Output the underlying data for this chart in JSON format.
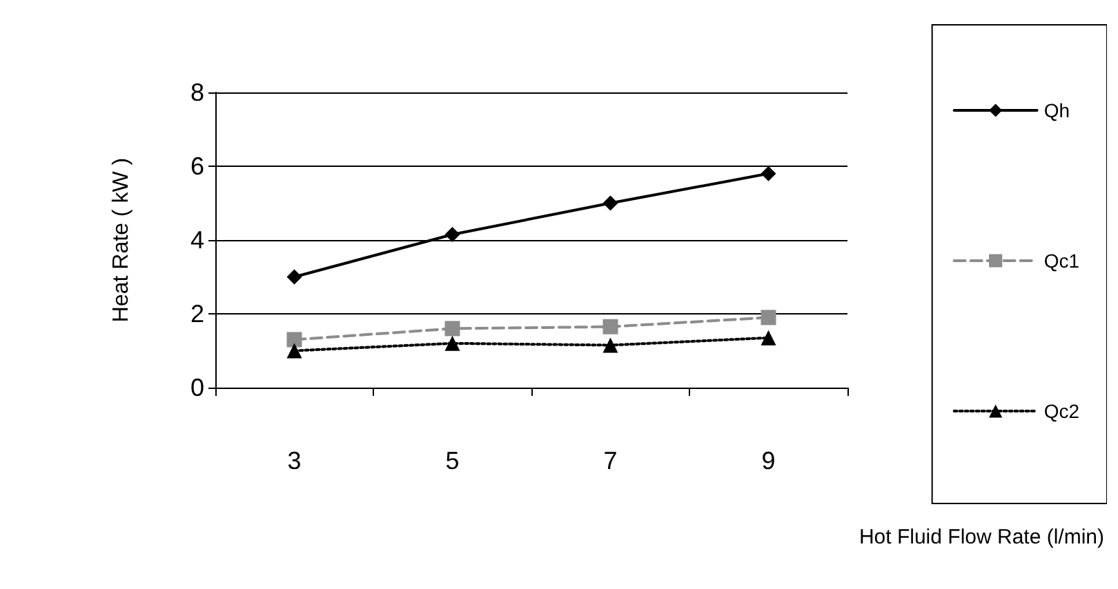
{
  "chart_data": {
    "type": "line",
    "xlabel": "Hot Fluid Flow Rate (l/min)",
    "ylabel": "Heat Rate ( kW )",
    "categories": [
      "3",
      "5",
      "7",
      "9"
    ],
    "ylim": [
      0,
      8
    ],
    "yticks": [
      0,
      2,
      4,
      6,
      8
    ],
    "grid": "y",
    "legend": "right",
    "series": [
      {
        "name": "Qh",
        "color": "#000000",
        "values": [
          3.0,
          4.15,
          5.0,
          5.8
        ],
        "marker": "diamond",
        "line_style": "solid"
      },
      {
        "name": "Qc1",
        "color": "#8c8c8c",
        "values": [
          1.3,
          1.6,
          1.65,
          1.9
        ],
        "marker": "square",
        "line_style": "dashed"
      },
      {
        "name": "Qc2",
        "color": "#000000",
        "values": [
          1.0,
          1.2,
          1.15,
          1.35
        ],
        "marker": "triangle",
        "line_style": "dotted"
      }
    ]
  }
}
